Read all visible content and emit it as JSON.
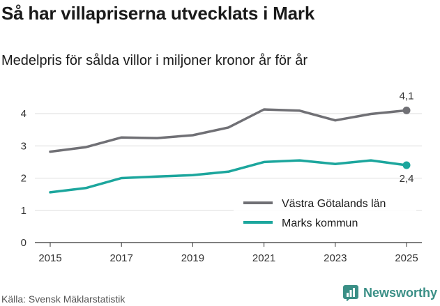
{
  "header": {
    "title": "Så har villapriserna utvecklats i Mark",
    "subtitle": "Medelpris för sålda villor i miljoner kronor år för år"
  },
  "footer": {
    "source": "Källa: Svensk Mäklarstatistik",
    "brand": "Newsworthy"
  },
  "colors": {
    "series_1": "#707075",
    "series_2": "#1ca69d",
    "brand": "#3a8f86"
  },
  "chart_data": {
    "type": "line",
    "title": "Så har villapriserna utvecklats i Mark",
    "subtitle": "Medelpris för sålda villor i miljoner kronor år för år",
    "xlabel": "",
    "ylabel": "",
    "x": [
      2015,
      2016,
      2017,
      2018,
      2019,
      2020,
      2021,
      2022,
      2023,
      2024,
      2025
    ],
    "xticks": [
      2015,
      2017,
      2019,
      2021,
      2023,
      2025
    ],
    "xtick_labels": [
      "2015",
      "2017",
      "2019",
      "2021",
      "2023",
      "2025"
    ],
    "yticks": [
      0,
      1,
      2,
      3,
      4
    ],
    "ytick_labels": [
      "0",
      "1",
      "2",
      "3",
      "4"
    ],
    "xlim": [
      2015,
      2025
    ],
    "ylim": [
      0,
      4.3
    ],
    "grid": "horizontal",
    "legend_position": "bottom-right",
    "series": [
      {
        "name": "Västra Götalands län",
        "values": [
          2.82,
          2.96,
          3.26,
          3.24,
          3.33,
          3.57,
          4.13,
          4.09,
          3.79,
          3.99,
          4.1
        ],
        "end_label": "4,1",
        "end_label_position": "above"
      },
      {
        "name": "Marks kommun",
        "values": [
          1.56,
          1.69,
          2.0,
          2.05,
          2.09,
          2.2,
          2.5,
          2.55,
          2.44,
          2.55,
          2.4
        ],
        "end_label": "2,4",
        "end_label_position": "below"
      }
    ]
  }
}
